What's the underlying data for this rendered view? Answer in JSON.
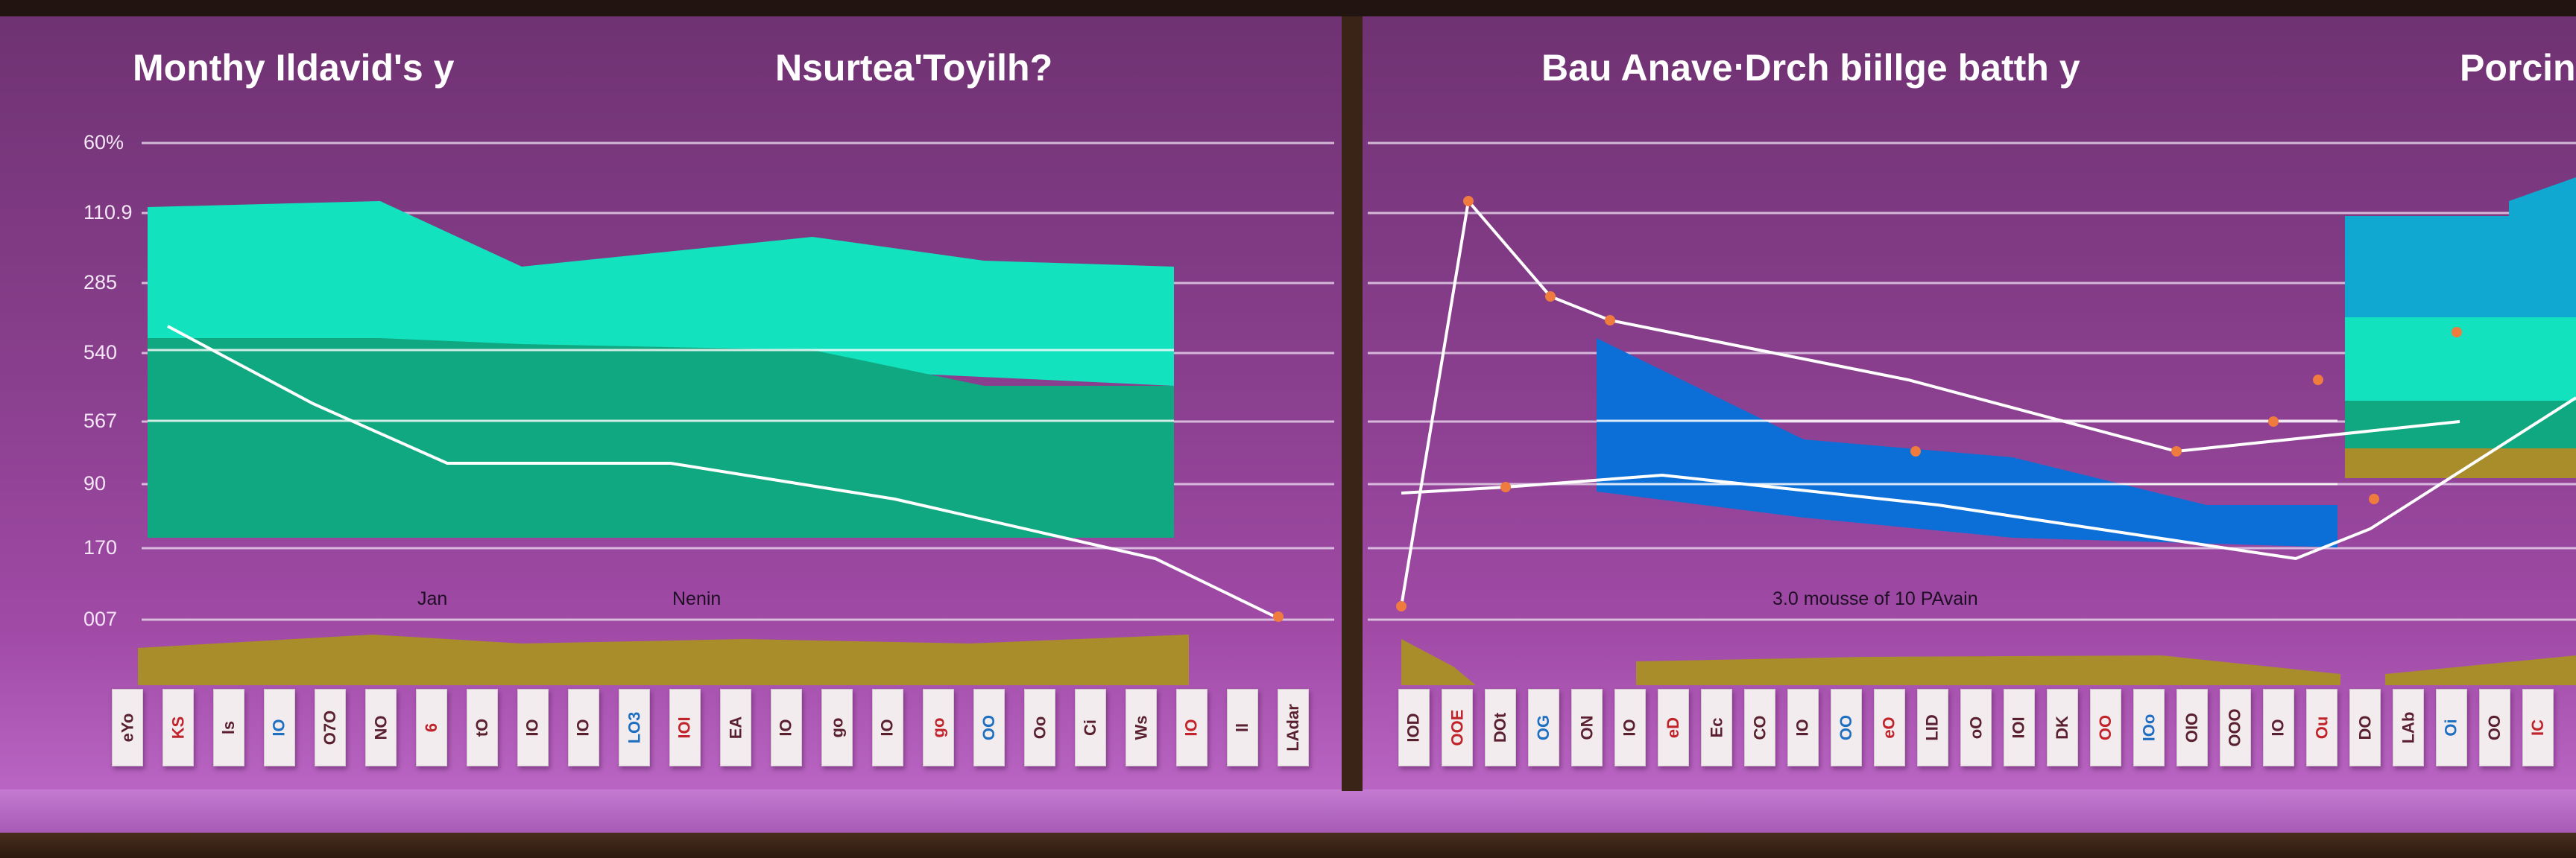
{
  "titles": {
    "left_1": "Monthy Ildavid's y",
    "left_2": "Nsurtea'Toyilh?",
    "right_1": "Bau Anave‧Drch biillge batth y",
    "right_2": "Porcin"
  },
  "colors": {
    "background": "#8a3f8e",
    "teal": "#12e2be",
    "teal_dark": "#0fa880",
    "blue": "#0c6fd8",
    "cyan": "#10a8d0",
    "olive": "#a88d2a",
    "line": "#ffffff",
    "marker": "#f07b3f"
  },
  "chart_data": [
    {
      "type": "area",
      "title": "Monthy Ildavid's y",
      "subtitle": "Nsurtea'Toyilh?",
      "y_tick_labels": [
        "60%",
        "110.9",
        "285",
        "540",
        "567",
        "90",
        "170",
        "007"
      ],
      "category_labels": [
        "Jan",
        "Nenin"
      ],
      "ylim": [
        0,
        8
      ],
      "grid": true,
      "series": [
        {
          "values": [
            6.9,
            7.0,
            5.9,
            6.4,
            6.0,
            5.9
          ]
        },
        {
          "values": [
            4.7,
            4.7,
            4.6,
            4.5,
            3.9,
            3.9
          ]
        }
      ],
      "lines": [
        {
          "values": [
            4.9,
            3.6,
            2.6,
            2.6,
            2.0,
            1.0,
            0.0
          ]
        }
      ],
      "bottom_band": {
        "values": [
          0.25,
          0.4,
          0.3,
          0.35,
          0.3
        ]
      },
      "card_labels": [
        "eYo",
        "KS",
        "ls",
        "IO",
        "O7O",
        "NO",
        "6",
        "tO",
        "IO",
        "IO",
        "LO3",
        "IOI",
        "EA",
        "IO",
        "go",
        "IO",
        "go",
        "OO",
        "Oo",
        "Ci",
        "Ws",
        "IO",
        "ll",
        "LAdar"
      ]
    },
    {
      "type": "line",
      "title": "Bau Anave‧Drch biillge batth y",
      "subtitle": "Porcin",
      "annotation": "3.0 mousse of 10 PAvain",
      "ylim": [
        0,
        8
      ],
      "grid": true,
      "series": [
        {
          "values": [
            0.2,
            7.0,
            5.4,
            5.0,
            4.0,
            2.8,
            3.3
          ]
        },
        {
          "values": [
            2.1,
            2.2,
            3.3,
            2.4,
            2.4,
            2.8,
            4.8
          ]
        }
      ],
      "area": {
        "values": [
          4.7,
          3.0,
          2.7,
          1.9,
          1.9
        ]
      },
      "stacked_blocks": [
        6.9,
        5.2,
        3.8,
        3.0
      ],
      "card_labels": [
        "IOD",
        "OOE",
        "DOt",
        "OG",
        "ON",
        "IO",
        "eD",
        "Ec",
        "CO",
        "IO",
        "OO",
        "eO",
        "LID",
        "oO",
        "IOI",
        "DK",
        "OO",
        "IOo",
        "OIO",
        "OOO",
        "IO",
        "Ou",
        "DO",
        "LAb",
        "Oi",
        "OO",
        "IC"
      ]
    }
  ]
}
